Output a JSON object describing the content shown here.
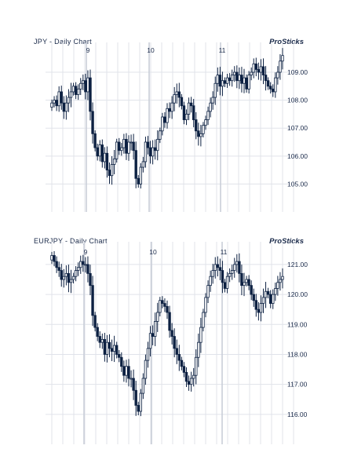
{
  "charts": [
    {
      "title": "JPY - Daily Chart",
      "brand": "ProSticks",
      "chart_data": {
        "type": "candlestick",
        "x_ticks": [
          "9",
          "10",
          "11"
        ],
        "y_ticks": [
          "109.00",
          "108.00",
          "107.00",
          "106.00",
          "105.00"
        ],
        "ylim": [
          104.0,
          109.9
        ],
        "grid": true,
        "close": [
          107.9,
          108.0,
          107.8,
          108.3,
          107.9,
          107.6,
          107.9,
          108.1,
          108.3,
          108.5,
          108.2,
          108.4,
          108.6,
          108.7,
          108.3,
          108.8,
          107.6,
          106.8,
          106.3,
          106.0,
          106.4,
          105.8,
          106.1,
          105.5,
          105.3,
          105.7,
          105.9,
          106.5,
          106.2,
          106.3,
          106.6,
          106.1,
          106.5,
          106.5,
          106.2,
          105.2,
          105.0,
          105.6,
          105.8,
          106.5,
          106.3,
          106.0,
          106.3,
          106.2,
          106.6,
          106.9,
          107.4,
          107.2,
          107.7,
          107.6,
          107.9,
          108.2,
          108.3,
          108.1,
          107.8,
          107.3,
          107.5,
          107.9,
          107.8,
          107.3,
          106.9,
          106.7,
          106.8,
          107.1,
          107.3,
          107.6,
          107.9,
          108.1,
          108.6,
          108.9,
          108.5,
          108.7,
          108.6,
          108.8,
          108.7,
          108.9,
          109.0,
          108.7,
          108.9,
          108.6,
          108.8,
          108.4,
          108.9,
          109.0,
          109.3,
          109.1,
          109.0,
          109.2,
          108.9,
          108.7,
          108.5,
          108.4,
          108.3,
          108.8,
          109.0,
          109.4,
          109.6
        ]
      }
    },
    {
      "title": "EURJPY - Daily Chart",
      "brand": "ProSticks",
      "chart_data": {
        "type": "candlestick",
        "x_ticks": [
          "9",
          "10",
          "11"
        ],
        "y_ticks": [
          "121.00",
          "120.00",
          "119.00",
          "118.00",
          "117.00",
          "116.00"
        ],
        "ylim": [
          115.0,
          121.6
        ],
        "grid": true,
        "close": [
          121.3,
          121.1,
          120.9,
          120.8,
          120.5,
          120.6,
          120.7,
          120.4,
          120.5,
          120.6,
          120.8,
          120.9,
          121.1,
          121.0,
          121.0,
          120.7,
          120.3,
          119.3,
          118.9,
          118.6,
          118.4,
          118.5,
          118.0,
          118.4,
          118.2,
          118.1,
          118.3,
          118.0,
          117.9,
          117.6,
          117.3,
          117.6,
          117.2,
          117.2,
          116.8,
          116.3,
          116.1,
          116.7,
          117.2,
          117.8,
          118.2,
          118.7,
          118.6,
          119.1,
          119.4,
          119.8,
          119.7,
          119.6,
          119.4,
          118.8,
          118.6,
          118.2,
          118.0,
          117.8,
          117.6,
          117.4,
          117.1,
          117.0,
          117.2,
          117.3,
          117.9,
          118.4,
          118.9,
          119.4,
          119.9,
          120.3,
          120.6,
          120.8,
          121.0,
          120.9,
          120.8,
          120.4,
          120.2,
          120.6,
          120.7,
          120.8,
          121.0,
          121.1,
          120.7,
          120.3,
          120.4,
          120.5,
          120.3,
          120.0,
          119.8,
          119.5,
          119.4,
          119.7,
          119.9,
          120.1,
          120.0,
          119.7,
          120.0,
          120.2,
          120.4,
          120.5,
          120.6
        ]
      }
    }
  ],
  "colors": {
    "candle": "#0d2142",
    "grid": "#e0e3ea",
    "major_grid": "#c9ced8",
    "axis_text": "#1a2a4a"
  }
}
